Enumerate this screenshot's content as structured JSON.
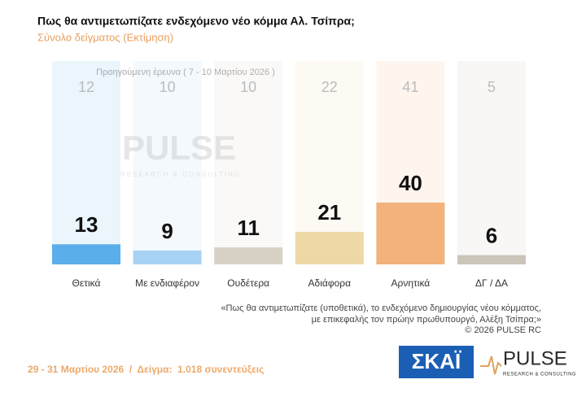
{
  "chart_data": {
    "type": "bar",
    "title": "Πως θα αντιμετωπίζατε ενδεχόμενο νέο κόμμα Αλ. Τσίπρα;",
    "subtitle": "Σύνολο δείγματος  (Εκτίμηση)",
    "categories": [
      "Θετικά",
      "Με ενδιαφέρον",
      "Ουδέτερα",
      "Αδιάφορα",
      "Αρνητικά",
      "ΔΓ / ΔΑ"
    ],
    "values": [
      13,
      9,
      11,
      21,
      40,
      6
    ],
    "colors": [
      "#5aaeea",
      "#a8d2f4",
      "#d8d2c6",
      "#eed9a6",
      "#f3b27c",
      "#cbc4b8"
    ],
    "previous": {
      "label": "Προηγούμενη έρευνα ( 7 - 10 Μαρτίου 2026 )",
      "values": [
        12,
        10,
        10,
        22,
        41,
        5
      ]
    },
    "note": [
      "«Πως θα αντιμετωπίζατε (υποθετικά), το ενδεχόμενο δημιουργίας νέου κόμματος,",
      "με επικεφαλής τον πρώην πρωθυπουργό, Αλέξη Τσίπρα;»",
      "©  2026  PULSE RC"
    ],
    "footer": "29 - 31 Μαρτίου 2026  /  Δείγμα:  1.018 συνεντεύξεις",
    "logos": {
      "skai": "ΣΚΑΪ",
      "pulse": "PULSE",
      "pulse_sub": "RESEARCH & CONSULTING"
    }
  }
}
